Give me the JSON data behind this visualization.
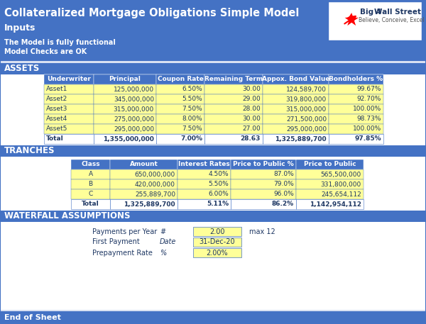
{
  "title": "Collateralized Mortgage Obligations Simple Model",
  "subtitle": "Inputs",
  "note_lines": [
    "The Model is fully functional",
    "Model Checks are OK"
  ],
  "assets_header": "ASSETS",
  "assets_columns": [
    "Underwriter",
    "Principal",
    "Coupon Rate",
    "Remaining Term",
    "Appox. Bond Value",
    "Bondholders %"
  ],
  "assets_rows": [
    [
      "Asset1",
      "125,000,000",
      "6.50%",
      "30.00",
      "124,589,700",
      "99.67%"
    ],
    [
      "Asset2",
      "345,000,000",
      "5.50%",
      "29.00",
      "319,800,000",
      "92.70%"
    ],
    [
      "Asset3",
      "315,000,000",
      "7.50%",
      "28.00",
      "315,000,000",
      "100.00%"
    ],
    [
      "Asset4",
      "275,000,000",
      "8.00%",
      "30.00",
      "271,500,000",
      "98.73%"
    ],
    [
      "Asset5",
      "295,000,000",
      "7.50%",
      "27.00",
      "295,000,000",
      "100.00%"
    ]
  ],
  "assets_total": [
    "Total",
    "1,355,000,000",
    "7.00%",
    "28.63",
    "1,325,889,700",
    "97.85%"
  ],
  "tranches_header": "TRANCHES",
  "tranches_columns": [
    "Class",
    "Amount",
    "Interest Rates",
    "Price to Public %",
    "Price to Public"
  ],
  "tranches_rows": [
    [
      "A",
      "650,000,000",
      "4.50%",
      "87.0%",
      "565,500,000"
    ],
    [
      "B",
      "420,000,000",
      "5.50%",
      "79.0%",
      "331,800,000"
    ],
    [
      "C",
      "255,889,700",
      "6.00%",
      "96.0%",
      "245,654,112"
    ]
  ],
  "tranches_total": [
    "Total",
    "1,325,889,700",
    "5.11%",
    "86.2%",
    "1,142,954,112"
  ],
  "waterfall_header": "WATERFALL ASSUMPTIONS",
  "waterfall_rows": [
    [
      "Payments per Year",
      "#",
      "2.00",
      "max 12"
    ],
    [
      "First Payment",
      "Date",
      "31-Dec-20",
      ""
    ],
    [
      "Prepayment Rate",
      "%",
      "2.00%",
      ""
    ]
  ],
  "end_label": "End of Sheet",
  "blue": "#4472C4",
  "yellow": "#FFFF99",
  "white": "#FFFFFF",
  "dark": "#1F3864",
  "gray_text": "#555555"
}
